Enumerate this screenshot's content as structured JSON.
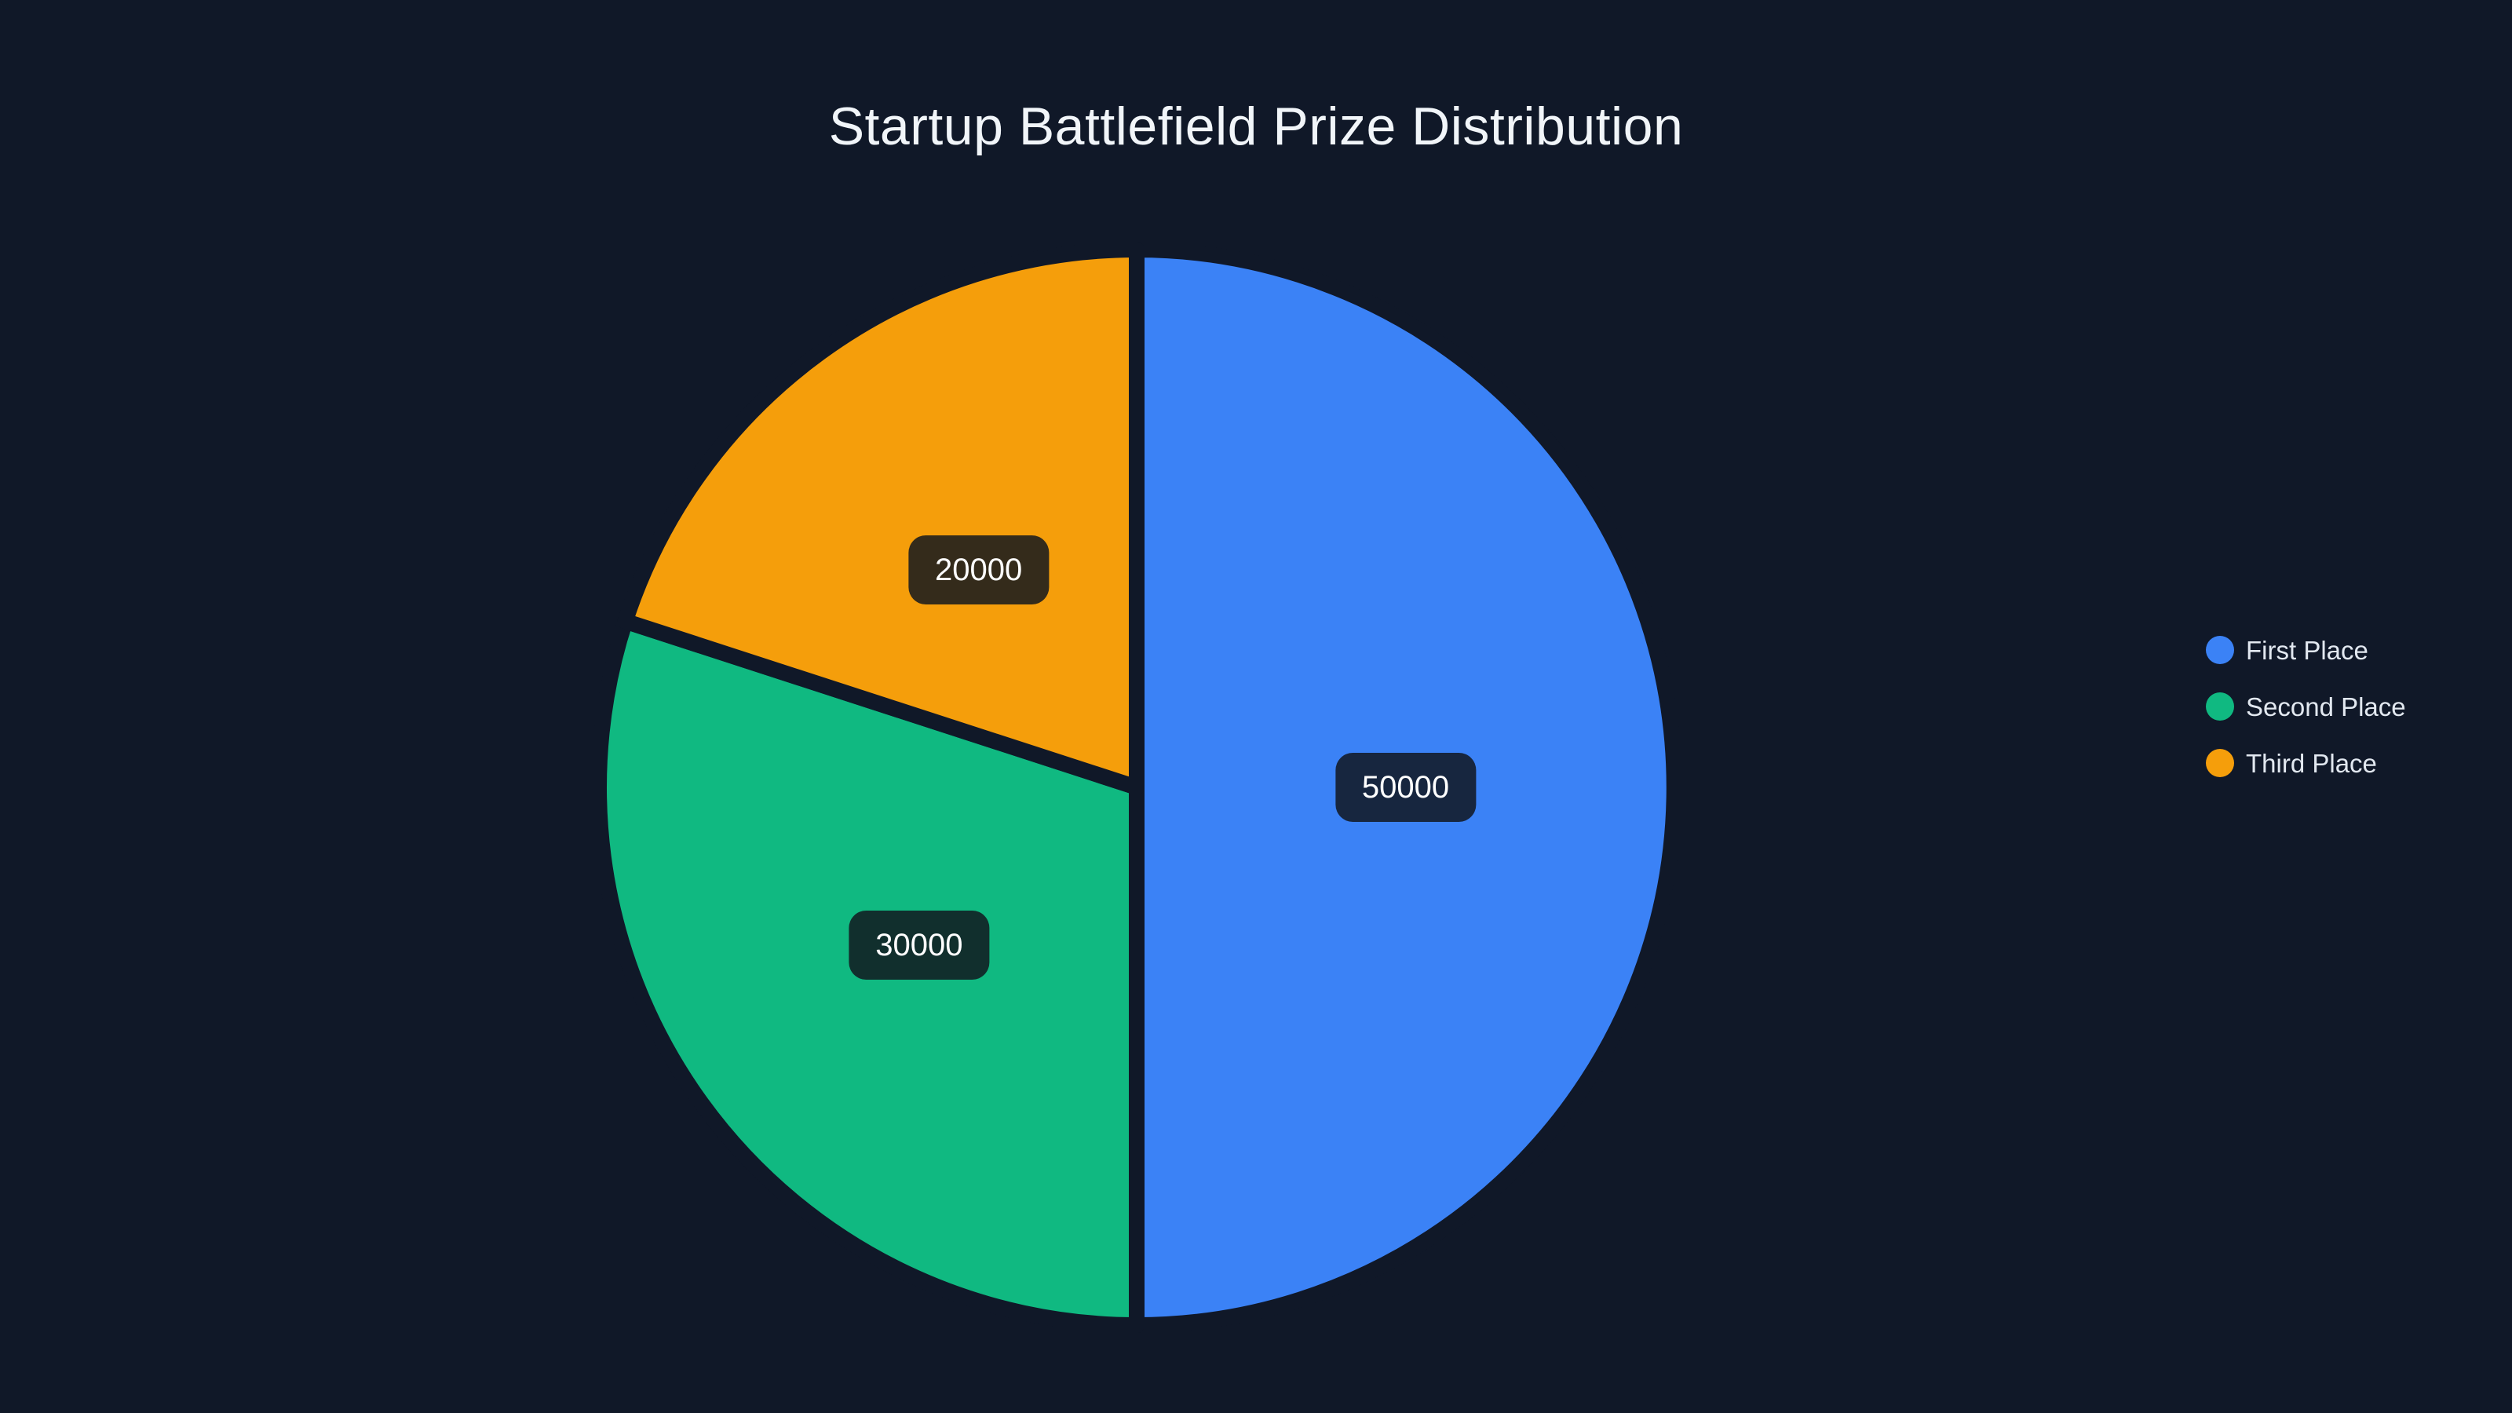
{
  "page": {
    "background_color": "#101828"
  },
  "title": {
    "text": "Startup Battlefield Prize Distribution",
    "color": "#f1f5f9"
  },
  "chart_data": {
    "type": "pie",
    "title": "Startup Battlefield Prize Distribution",
    "direction": "clockwise",
    "start_angle_deg": 0,
    "legend_position": "right-center",
    "slice_separator_color": "#101828",
    "label_style": {
      "background": "rgba(18, 22, 30, 0.85)",
      "text_color": "#ffffff"
    },
    "total": 100000,
    "slices": [
      {
        "label": "First Place",
        "value": 50000,
        "percent": 50,
        "color": "#3b82f6",
        "data_label": "50000"
      },
      {
        "label": "Second Place",
        "value": 30000,
        "percent": 30,
        "color": "#10b981",
        "data_label": "30000"
      },
      {
        "label": "Third Place",
        "value": 20000,
        "percent": 20,
        "color": "#f59e0b",
        "data_label": "20000"
      }
    ]
  }
}
